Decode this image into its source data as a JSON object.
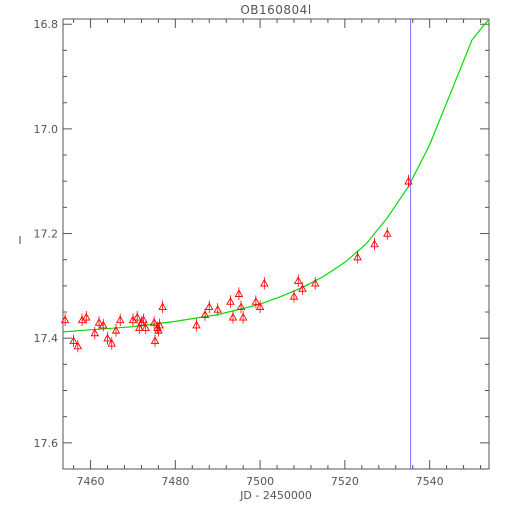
{
  "chart_data": {
    "type": "scatter",
    "title": "OB160804l",
    "xlabel": "JD - 2450000",
    "ylabel": "I",
    "xlim": [
      7453.5,
      7554
    ],
    "ylim": [
      17.65,
      16.79
    ],
    "y_inverted": true,
    "xticks": [
      7460,
      7480,
      7500,
      7520,
      7540
    ],
    "yticks": [
      16.8,
      17.0,
      17.2,
      17.4,
      17.6
    ],
    "ytick_labels": [
      "16.8",
      "17.0",
      "17.2",
      "17.4",
      "17.6"
    ],
    "vertical_marker_x": 7535.5,
    "model": {
      "x": [
        7453.5,
        7460,
        7470,
        7480,
        7490,
        7500,
        7505,
        7510,
        7515,
        7520,
        7525,
        7530,
        7535,
        7540,
        7545,
        7550,
        7554
      ],
      "y": [
        17.388,
        17.384,
        17.378,
        17.368,
        17.355,
        17.335,
        17.32,
        17.303,
        17.282,
        17.255,
        17.22,
        17.17,
        17.11,
        17.03,
        16.93,
        16.83,
        16.79
      ]
    },
    "points": {
      "x": [
        7454,
        7456,
        7457,
        7458,
        7459,
        7461,
        7462,
        7463,
        7464,
        7465,
        7466,
        7467,
        7470,
        7471,
        7471.5,
        7472,
        7472.5,
        7473,
        7475,
        7475.2,
        7475.8,
        7476,
        7476.3,
        7477,
        7485,
        7487,
        7488,
        7490,
        7493,
        7493.6,
        7495,
        7495.5,
        7496,
        7499,
        7500,
        7501,
        7508,
        7509,
        7510,
        7513,
        7523,
        7527,
        7530,
        7535
      ],
      "y": [
        17.365,
        17.405,
        17.415,
        17.365,
        17.36,
        17.39,
        17.37,
        17.375,
        17.4,
        17.41,
        17.385,
        17.365,
        17.365,
        17.36,
        17.38,
        17.37,
        17.365,
        17.38,
        17.37,
        17.405,
        17.38,
        17.385,
        17.375,
        17.34,
        17.375,
        17.355,
        17.34,
        17.345,
        17.33,
        17.36,
        17.315,
        17.34,
        17.36,
        17.33,
        17.34,
        17.295,
        17.32,
        17.29,
        17.305,
        17.295,
        17.245,
        17.22,
        17.2,
        17.1
      ],
      "err": [
        0.012,
        0.012,
        0.012,
        0.012,
        0.012,
        0.012,
        0.012,
        0.012,
        0.012,
        0.012,
        0.012,
        0.012,
        0.012,
        0.012,
        0.012,
        0.012,
        0.012,
        0.012,
        0.012,
        0.012,
        0.012,
        0.012,
        0.012,
        0.012,
        0.012,
        0.012,
        0.012,
        0.012,
        0.012,
        0.012,
        0.012,
        0.012,
        0.012,
        0.012,
        0.012,
        0.012,
        0.012,
        0.012,
        0.012,
        0.012,
        0.012,
        0.012,
        0.012,
        0.012
      ]
    },
    "colors": {
      "points": "#ff0000",
      "model": "#00dd00",
      "marker": "#7777ff",
      "axes": "#555555"
    },
    "grid": false
  }
}
